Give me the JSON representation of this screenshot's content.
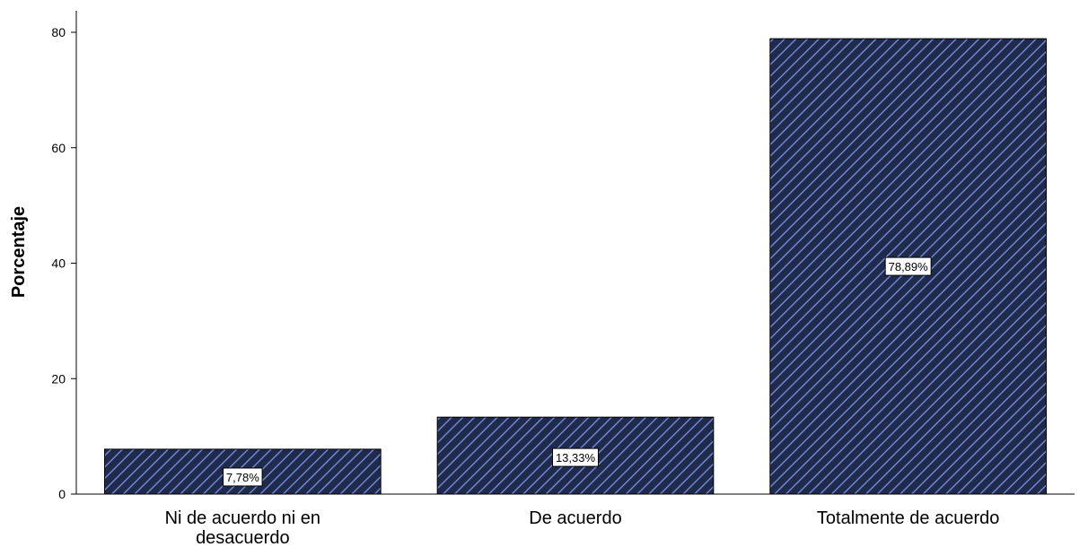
{
  "chart_data": {
    "type": "bar",
    "title": "",
    "xlabel": "",
    "ylabel": "Porcentaje",
    "ylim": [
      0,
      80
    ],
    "yticks": [
      0,
      20,
      40,
      60,
      80
    ],
    "grid": false,
    "categories": [
      [
        "Ni de acuerdo ni en",
        "desacuerdo"
      ],
      [
        "De acuerdo"
      ],
      [
        "Totalmente de acuerdo"
      ]
    ],
    "values": [
      7.78,
      13.33,
      78.89
    ],
    "data_labels": [
      "7,78%",
      "13,33%",
      "78,89%"
    ],
    "bar_color": "#1f2a4d",
    "hatch_color": "#6f86c9",
    "bar_pattern": "diagonal-hatch"
  }
}
